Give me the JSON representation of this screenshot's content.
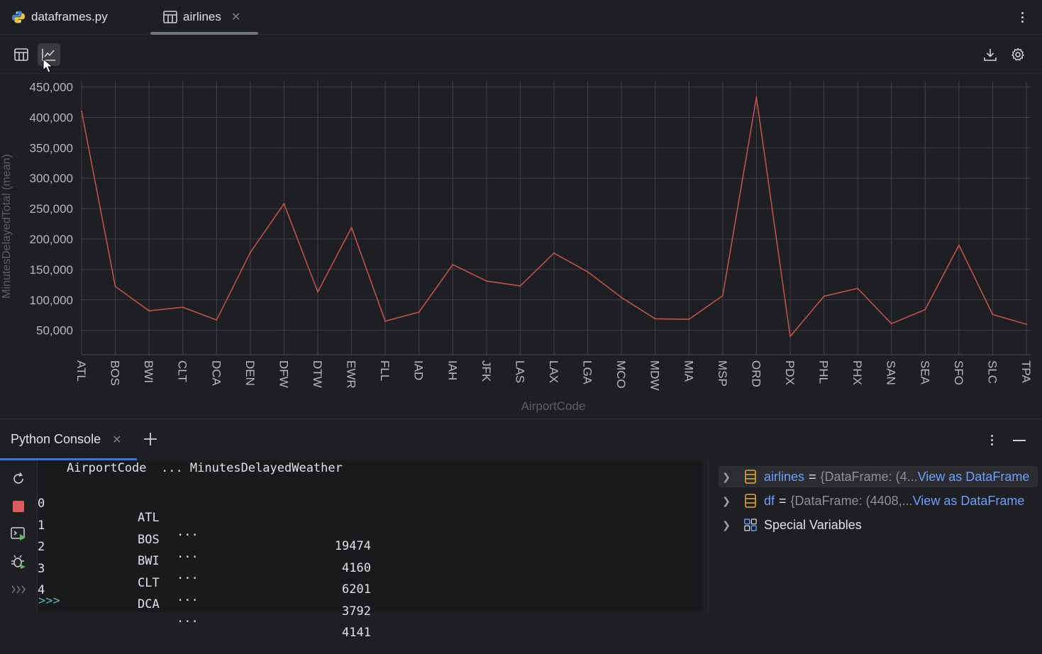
{
  "tabs": [
    {
      "label": "dataframes.py",
      "icon": "python-icon"
    },
    {
      "label": "airlines",
      "icon": "table-icon",
      "active": true
    }
  ],
  "chart_data": {
    "type": "line",
    "xlabel": "AirportCode",
    "ylabel": "MinutesDelayedTotal (mean)",
    "categories": [
      "ATL",
      "BOS",
      "BWI",
      "CLT",
      "DCA",
      "DEN",
      "DFW",
      "DTW",
      "EWR",
      "FLL",
      "IAD",
      "IAH",
      "JFK",
      "LAS",
      "LAX",
      "LGA",
      "MCO",
      "MDW",
      "MIA",
      "MSP",
      "ORD",
      "PDX",
      "PHL",
      "PHX",
      "SAN",
      "SEA",
      "SFO",
      "SLC",
      "TPA"
    ],
    "values": [
      410000,
      122000,
      82000,
      88000,
      67000,
      178000,
      258000,
      113000,
      219000,
      65000,
      80000,
      158000,
      131000,
      123000,
      177000,
      146000,
      104000,
      69000,
      68000,
      107000,
      433000,
      40000,
      106000,
      119000,
      61000,
      84000,
      190000,
      76000,
      60000
    ],
    "yticks": [
      "50,000",
      "100,000",
      "150,000",
      "200,000",
      "250,000",
      "300,000",
      "350,000",
      "400,000",
      "450,000"
    ],
    "ylim": [
      10000,
      460000
    ],
    "grid": true,
    "color": "#c0504d"
  },
  "console": {
    "tab_label": "Python Console",
    "header_line": "    AirportCode  ... MinutesDelayedWeather",
    "rows": [
      {
        "idx": "0",
        "code": "ATL",
        "dots": "...",
        "val": "19474"
      },
      {
        "idx": "1",
        "code": "BOS",
        "dots": "...",
        "val": "4160"
      },
      {
        "idx": "2",
        "code": "BWI",
        "dots": "...",
        "val": "6201"
      },
      {
        "idx": "3",
        "code": "CLT",
        "dots": "...",
        "val": "3792"
      },
      {
        "idx": "4",
        "code": "DCA",
        "dots": "...",
        "val": "4141"
      }
    ],
    "prompt": ">>>"
  },
  "variables": [
    {
      "name": "airlines",
      "value": "{DataFrame: (4...",
      "link": "View as DataFrame"
    },
    {
      "name": "df",
      "value": "{DataFrame: (4408,...",
      "link": "View as DataFrame"
    },
    {
      "name": "Special Variables"
    }
  ]
}
